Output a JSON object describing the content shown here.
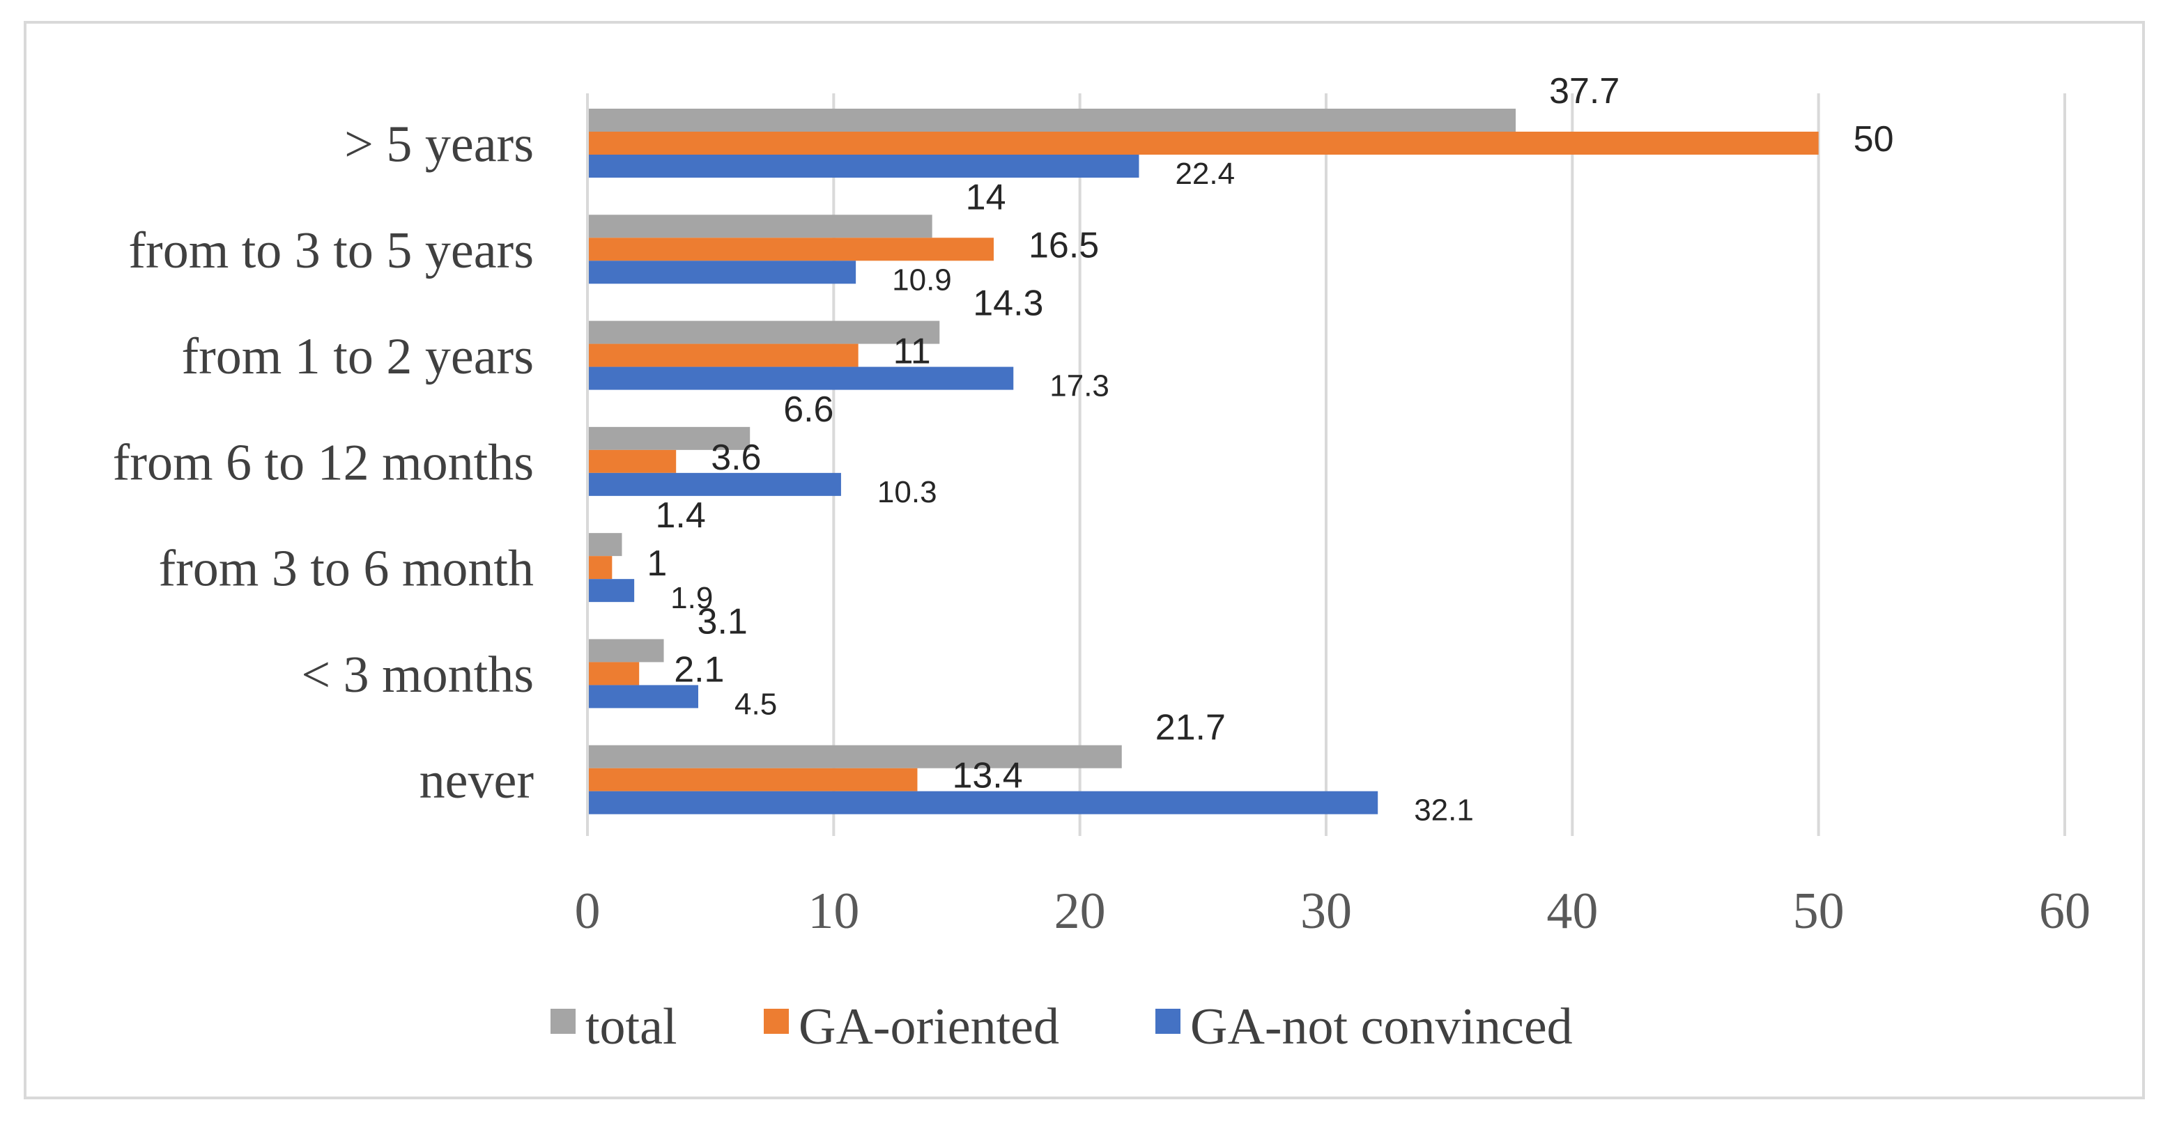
{
  "chart_data": {
    "type": "bar",
    "orientation": "horizontal",
    "categories": [
      "> 5 years",
      "from to 3 to 5 years",
      "from 1 to 2 years",
      "from 6 to 12 months",
      "from 3 to 6 month",
      "< 3 months",
      "never"
    ],
    "series": [
      {
        "name": "total",
        "color": "#a5a5a5",
        "values": [
          37.7,
          14,
          14.3,
          6.6,
          1.4,
          3.1,
          21.7
        ]
      },
      {
        "name": "GA-oriented",
        "color": "#ed7d31",
        "values": [
          50,
          16.5,
          11,
          3.6,
          1,
          2.1,
          13.4
        ]
      },
      {
        "name": "GA-not convinced",
        "color": "#4472c4",
        "values": [
          22.4,
          10.9,
          17.3,
          10.3,
          1.9,
          4.5,
          32.1
        ]
      }
    ],
    "xlim": [
      0,
      60
    ],
    "xticks": [
      0,
      10,
      20,
      30,
      40,
      50,
      60
    ],
    "grid": true,
    "legend_position": "bottom",
    "title": "",
    "xlabel": "",
    "ylabel": ""
  }
}
